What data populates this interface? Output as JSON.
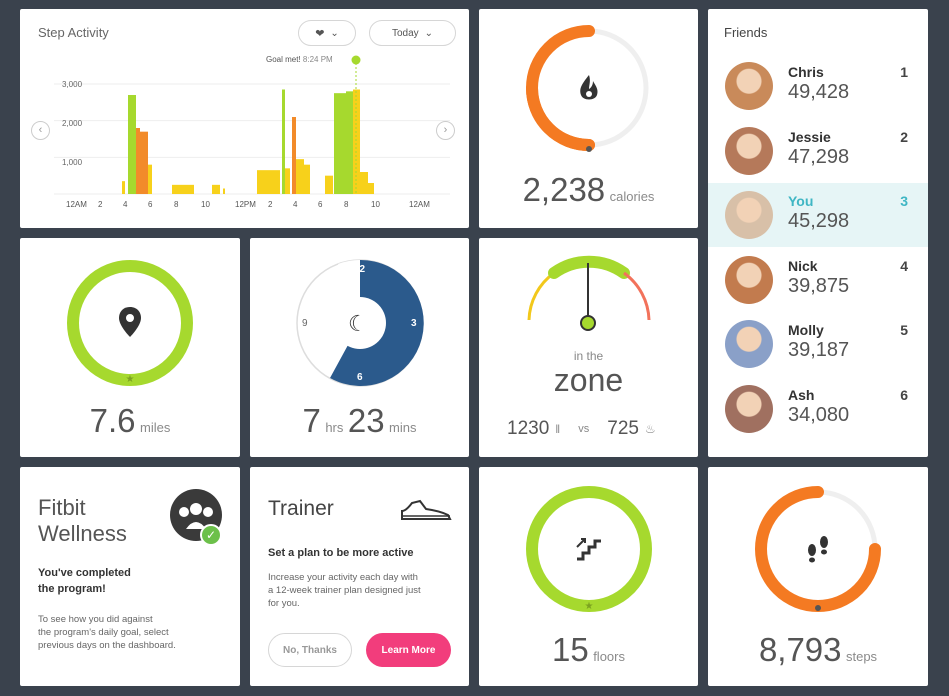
{
  "step_activity": {
    "title": "Step Activity",
    "range_label": "Today",
    "goal_prefix": "Goal met!",
    "goal_time": "8:24 PM",
    "y_ticks": [
      "3,000",
      "2,000",
      "1,000"
    ],
    "x_ticks": [
      "12AM",
      "2",
      "4",
      "6",
      "8",
      "10",
      "12PM",
      "2",
      "4",
      "6",
      "8",
      "10",
      "12AM"
    ],
    "colors": {
      "green": "#a6d92e",
      "orange": "#f28b2a",
      "yellow": "#f7d11b"
    }
  },
  "calories": {
    "value": "2,238",
    "unit": "calories",
    "progress": 0.8
  },
  "miles": {
    "value": "7.6",
    "unit": "miles",
    "progress": 1.0
  },
  "sleep": {
    "hours": "7",
    "hours_unit": "hrs",
    "minutes": "23",
    "minutes_unit": "mins",
    "dial": [
      "12",
      "3",
      "6",
      "9"
    ]
  },
  "zone": {
    "line1": "in the",
    "line2": "zone",
    "food": "1230",
    "vs": "vs",
    "burned": "725"
  },
  "friends": {
    "title": "Friends",
    "list": [
      {
        "name": "Chris",
        "steps": "49,428",
        "rank": "1"
      },
      {
        "name": "Jessie",
        "steps": "47,298",
        "rank": "2"
      },
      {
        "name": "You",
        "steps": "45,298",
        "rank": "3"
      },
      {
        "name": "Nick",
        "steps": "39,875",
        "rank": "4"
      },
      {
        "name": "Molly",
        "steps": "39,187",
        "rank": "5"
      },
      {
        "name": "Ash",
        "steps": "34,080",
        "rank": "6"
      }
    ]
  },
  "wellness": {
    "title1": "Fitbit",
    "title2": "Wellness",
    "headline1": "You've completed",
    "headline2": "the program!",
    "body1": "To see how you did against",
    "body2": "the program's daily goal, select",
    "body3": "previous days on the dashboard."
  },
  "trainer": {
    "title": "Trainer",
    "subtitle": "Set a plan to be more active",
    "body1": "Increase your activity each day with",
    "body2": "a 12-week trainer plan designed just",
    "body3": "for you.",
    "no_label": "No, Thanks",
    "yes_label": "Learn More"
  },
  "floors": {
    "value": "15",
    "unit": "floors",
    "progress": 1.0
  },
  "steps": {
    "value": "8,793",
    "unit": "steps",
    "progress": 0.78
  }
}
